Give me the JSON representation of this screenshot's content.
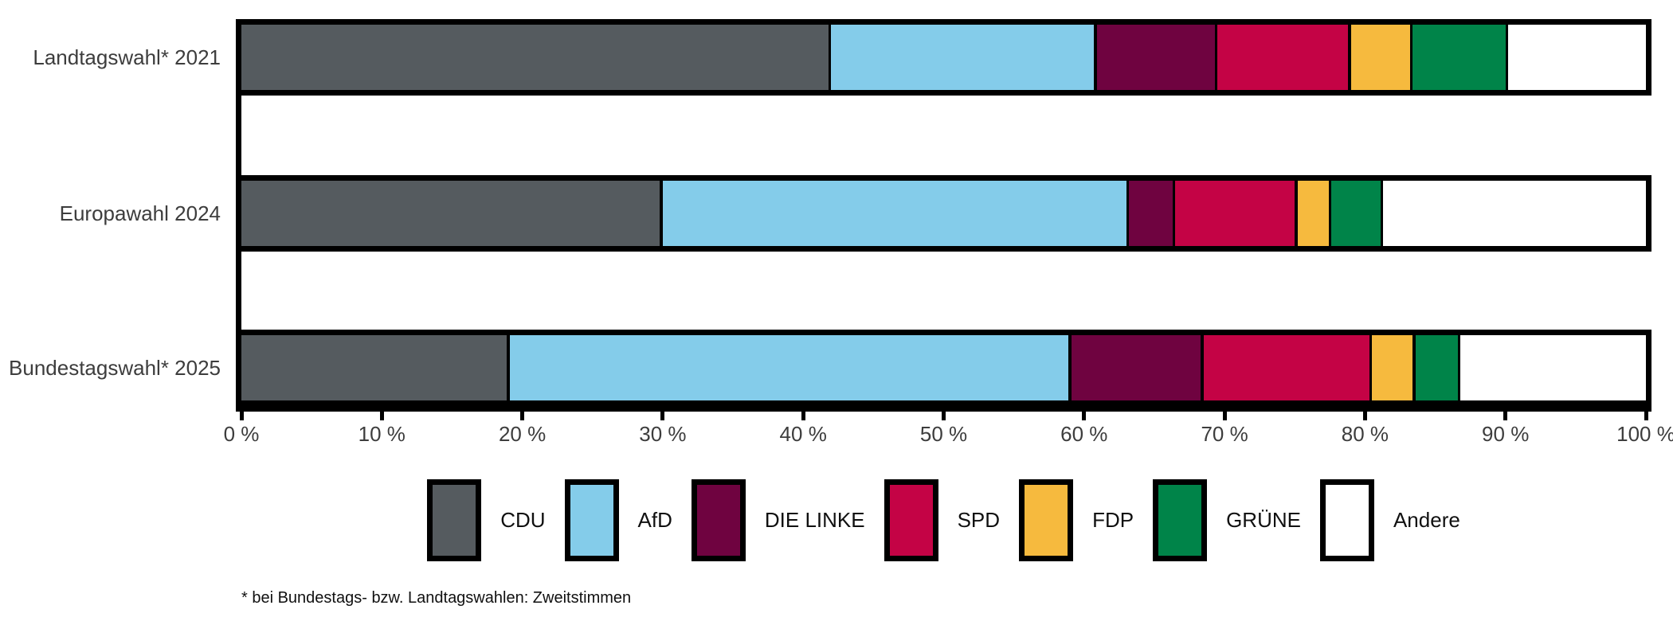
{
  "chart_data": {
    "type": "bar",
    "orientation": "horizontal",
    "stacked": true,
    "title": "",
    "xlabel": "",
    "ylabel": "",
    "xlim": [
      0,
      100
    ],
    "grid": false,
    "legend_position": "bottom",
    "categories": [
      "Landtagswahl* 2021",
      "Europawahl 2024",
      "Bundestagswahl* 2025"
    ],
    "x_ticks": [
      "0 %",
      "10 %",
      "20 %",
      "30 %",
      "40 %",
      "50 %",
      "60 %",
      "70 %",
      "80 %",
      "90 %",
      "100 %"
    ],
    "series": [
      {
        "name": "CDU",
        "color": "#555B5F",
        "values": [
          42.0,
          30.0,
          19.1
        ]
      },
      {
        "name": "AfD",
        "color": "#84CCEA",
        "values": [
          18.9,
          33.2,
          40.0
        ]
      },
      {
        "name": "DIE LINKE",
        "color": "#6F0340",
        "values": [
          8.6,
          3.3,
          9.4
        ]
      },
      {
        "name": "SPD",
        "color": "#C40345",
        "values": [
          9.5,
          8.7,
          12.0
        ]
      },
      {
        "name": "FDP",
        "color": "#F6BA3E",
        "values": [
          4.4,
          2.4,
          3.1
        ]
      },
      {
        "name": "GRÜNE",
        "color": "#008449",
        "values": [
          6.8,
          3.7,
          3.2
        ]
      },
      {
        "name": "Andere",
        "color": "#FFFFFF",
        "values": [
          9.8,
          18.7,
          13.2
        ]
      }
    ]
  },
  "footnote": "* bei Bundestags- bzw. Landtagswahlen: Zweitstimmen",
  "colors": {
    "background": "#FFFFFF",
    "bar_border": "#000000",
    "axis": "#000000",
    "tick_label": "#3D3D3D",
    "row_label": "#3D3D3D",
    "legend_label": "#101010",
    "footnote_text": "#101010"
  }
}
